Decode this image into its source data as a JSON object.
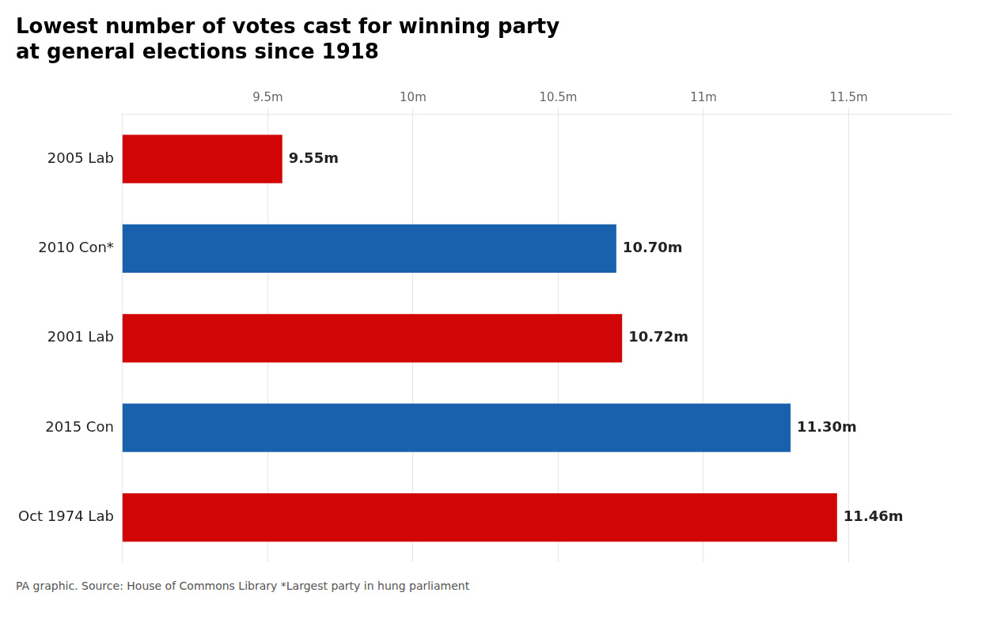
{
  "chart_data": {
    "type": "bar",
    "orientation": "horizontal",
    "title": "Lowest number of votes cast for winning party\nat general elections since 1918",
    "categories": [
      "2005 Lab",
      "2010 Con*",
      "2001 Lab",
      "2015 Con",
      "Oct 1974 Lab"
    ],
    "values": [
      9.55,
      10.7,
      10.72,
      11.3,
      11.46
    ],
    "value_labels": [
      "9.55m",
      "10.70m",
      "10.72m",
      "11.30m",
      "11.46m"
    ],
    "colors": [
      "#d10505",
      "#1a61ad",
      "#d10505",
      "#1a61ad",
      "#d10505"
    ],
    "xlim": [
      9.0,
      11.85
    ],
    "xticks": [
      {
        "value": 9.5,
        "label": "9.5m"
      },
      {
        "value": 10.0,
        "label": "10m"
      },
      {
        "value": 10.5,
        "label": "10.5m"
      },
      {
        "value": 11.0,
        "label": "11m"
      },
      {
        "value": 11.5,
        "label": "11.5m"
      }
    ],
    "grid": true,
    "data_labels": true,
    "annotations": [
      "PA graphic. Source: House of Commons Library *Largest party in hung parliament"
    ]
  }
}
